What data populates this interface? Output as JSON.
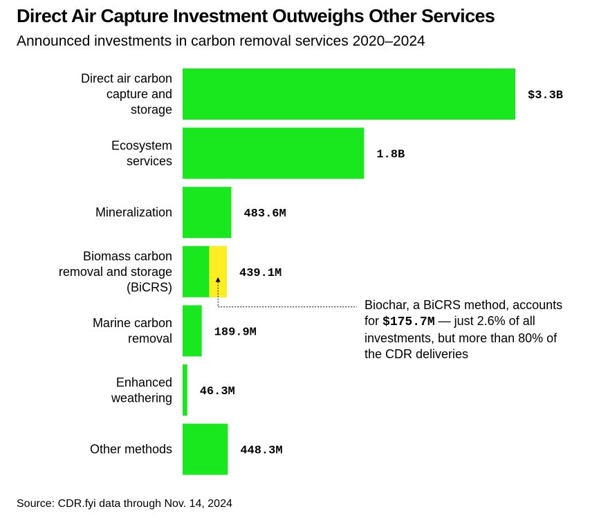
{
  "title": "Direct Air Capture Investment Outweighs Other Services",
  "subtitle": "Announced investments in carbon removal services 2020–2024",
  "source": "Source: CDR.fyi data through Nov. 14, 2024",
  "colors": {
    "bar": "#19e81f",
    "highlight": "#ffee22"
  },
  "chart_data": {
    "type": "bar",
    "orientation": "horizontal",
    "unit": "USD",
    "categories": [
      [
        "Direct air carbon",
        "capture and",
        "storage"
      ],
      [
        "Ecosystem",
        "services"
      ],
      [
        "Mineralization"
      ],
      [
        "Biomass carbon",
        "removal and storage",
        "(BiCRS)"
      ],
      [
        "Marine carbon",
        "removal"
      ],
      [
        "Enhanced",
        "weathering"
      ],
      [
        "Other methods"
      ]
    ],
    "values": [
      3300000000,
      1800000000,
      483600000,
      439100000,
      189900000,
      46300000,
      448300000
    ],
    "value_labels": [
      "$3.3B",
      "1.8B",
      "483.6M",
      "439.1M",
      "189.9M",
      "46.3M",
      "448.3M"
    ],
    "highlight": {
      "category_index": 3,
      "label": "Biochar",
      "value": 175700000
    }
  },
  "annotation": {
    "line1": "Biochar, a BiCRS method, accounts",
    "line2_prefix": "for ",
    "line2_value": "$175.7M",
    "line2_suffix": " — just 2.6% of all",
    "line3": "investments, but more than 80% of",
    "line4": "the CDR deliveries"
  }
}
